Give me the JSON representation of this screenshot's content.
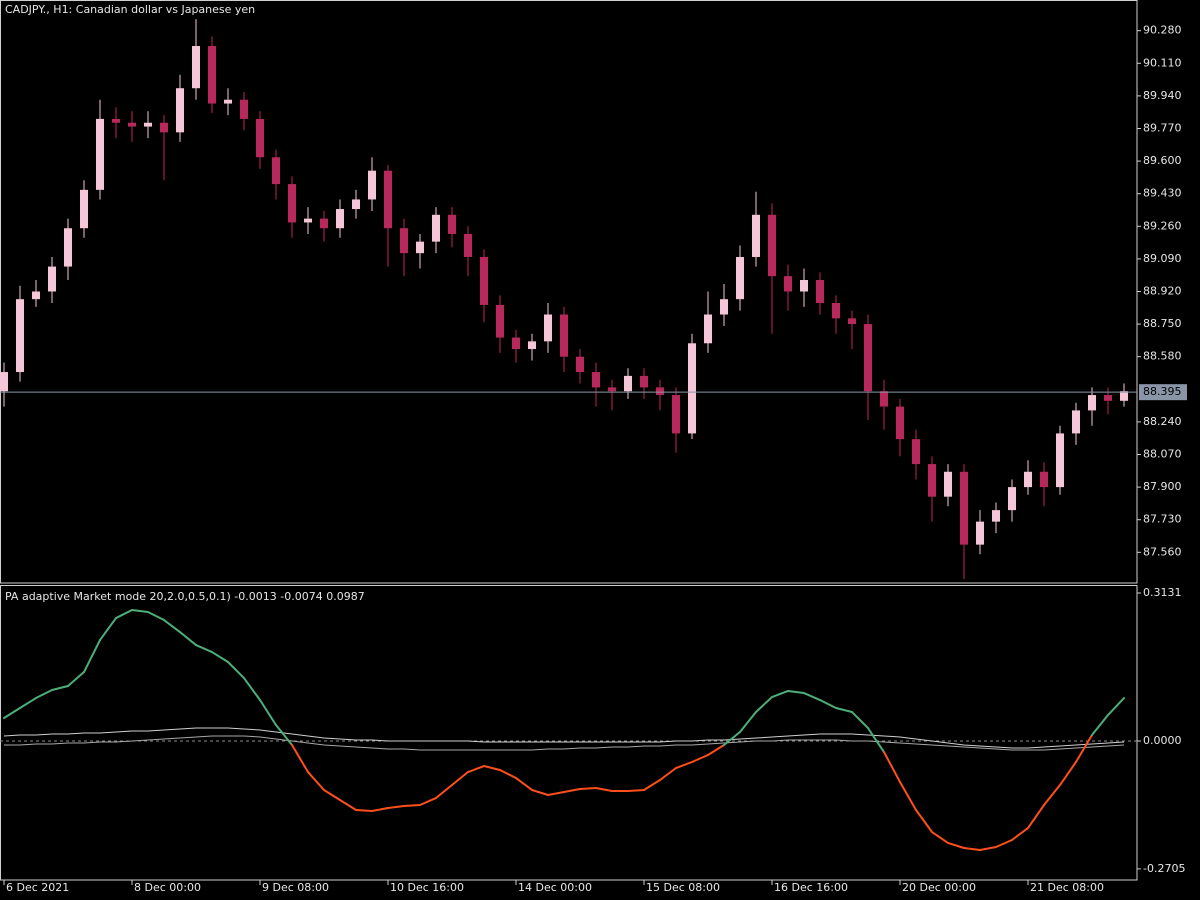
{
  "chart_data": [
    {
      "type": "candlestick",
      "title": "CADJPY., H1:  Canadian dollar vs Japanese yen",
      "x": [
        "6 Dec 2021",
        null,
        null,
        null,
        null,
        null,
        null,
        null,
        "8 Dec 00:00",
        null,
        null,
        null,
        null,
        null,
        null,
        null,
        "9 Dec 08:00",
        null,
        null,
        null,
        null,
        null,
        null,
        null,
        "10 Dec 16:00",
        null,
        null,
        null,
        null,
        null,
        null,
        null,
        "14 Dec 00:00",
        null,
        null,
        null,
        null,
        null,
        null,
        null,
        "15 Dec 08:00",
        null,
        null,
        null,
        null,
        null,
        null,
        null,
        "16 Dec 16:00",
        null,
        null,
        null,
        null,
        null,
        null,
        null,
        "20 Dec 00:00",
        null,
        null,
        null,
        null,
        null,
        null,
        null,
        "21 Dec 08:00",
        null,
        null,
        null,
        null,
        null,
        null
      ],
      "open": [
        88.4,
        88.5,
        88.88,
        88.92,
        89.05,
        89.25,
        89.45,
        89.82,
        89.8,
        89.78,
        89.8,
        89.75,
        89.98,
        90.2,
        89.9,
        89.92,
        89.82,
        89.62,
        89.48,
        89.28,
        89.3,
        89.25,
        89.35,
        89.4,
        89.55,
        89.25,
        89.12,
        89.18,
        89.32,
        89.22,
        89.1,
        88.85,
        88.68,
        88.62,
        88.66,
        88.8,
        88.58,
        88.5,
        88.42,
        88.4,
        88.48,
        88.42,
        88.38,
        88.18,
        88.65,
        88.8,
        88.88,
        89.1,
        89.32,
        89.0,
        88.92,
        88.98,
        88.86,
        88.78,
        88.75,
        88.4,
        88.32,
        88.15,
        88.02,
        87.85,
        87.98,
        87.6,
        87.72,
        87.78,
        87.9,
        87.98,
        87.9,
        88.18,
        88.3,
        88.38,
        88.35
      ],
      "high": [
        88.55,
        88.95,
        88.98,
        89.1,
        89.3,
        89.5,
        89.92,
        89.88,
        89.86,
        89.86,
        89.84,
        90.05,
        90.34,
        90.25,
        89.98,
        89.96,
        89.86,
        89.66,
        89.52,
        89.36,
        89.34,
        89.4,
        89.45,
        89.62,
        89.58,
        89.3,
        89.22,
        89.36,
        89.36,
        89.26,
        89.14,
        88.9,
        88.72,
        88.7,
        88.86,
        88.84,
        88.62,
        88.55,
        88.46,
        88.52,
        88.52,
        88.46,
        88.42,
        88.7,
        88.92,
        88.96,
        89.16,
        89.44,
        89.38,
        89.06,
        89.04,
        89.02,
        88.9,
        88.82,
        88.8,
        88.46,
        88.36,
        88.2,
        88.06,
        88.02,
        88.02,
        87.78,
        87.82,
        87.94,
        88.04,
        88.03,
        88.22,
        88.34,
        88.42,
        88.42,
        88.44
      ],
      "low": [
        88.32,
        88.45,
        88.84,
        88.86,
        88.98,
        89.2,
        89.4,
        89.72,
        89.7,
        89.72,
        89.5,
        89.7,
        89.92,
        89.85,
        89.84,
        89.76,
        89.56,
        89.4,
        89.2,
        89.22,
        89.18,
        89.2,
        89.3,
        89.34,
        89.05,
        89.0,
        89.04,
        89.12,
        89.15,
        89.0,
        88.76,
        88.6,
        88.55,
        88.56,
        88.6,
        88.5,
        88.44,
        88.32,
        88.3,
        88.36,
        88.36,
        88.3,
        88.08,
        88.15,
        88.6,
        88.74,
        88.82,
        89.05,
        88.7,
        88.82,
        88.84,
        88.8,
        88.7,
        88.62,
        88.25,
        88.2,
        88.06,
        87.94,
        87.72,
        87.8,
        87.42,
        87.55,
        87.66,
        87.72,
        87.86,
        87.8,
        87.86,
        88.12,
        88.22,
        88.28,
        88.32
      ],
      "close": [
        88.5,
        88.88,
        88.92,
        89.05,
        89.25,
        89.45,
        89.82,
        89.8,
        89.78,
        89.8,
        89.75,
        89.98,
        90.2,
        89.9,
        89.92,
        89.82,
        89.62,
        89.48,
        89.28,
        89.3,
        89.25,
        89.35,
        89.4,
        89.55,
        89.25,
        89.12,
        89.18,
        89.32,
        89.22,
        89.1,
        88.85,
        88.68,
        88.62,
        88.66,
        88.8,
        88.58,
        88.5,
        88.42,
        88.4,
        88.48,
        88.42,
        88.38,
        88.18,
        88.65,
        88.8,
        88.88,
        89.1,
        89.32,
        89.0,
        88.92,
        88.98,
        88.86,
        88.78,
        88.75,
        88.4,
        88.32,
        88.15,
        88.02,
        87.85,
        87.98,
        87.6,
        87.72,
        87.78,
        87.9,
        87.98,
        87.9,
        88.18,
        88.3,
        88.38,
        88.35,
        88.4
      ],
      "up_color": "#f4c6d8",
      "down_color": "#b8285c",
      "last_price": 88.395,
      "ylim": [
        87.4,
        90.44
      ],
      "yticks": [
        {
          "value": 90.28,
          "label": "90.280"
        },
        {
          "value": 90.11,
          "label": "90.110"
        },
        {
          "value": 89.94,
          "label": "89.940"
        },
        {
          "value": 89.77,
          "label": "89.770"
        },
        {
          "value": 89.6,
          "label": "89.600"
        },
        {
          "value": 89.43,
          "label": "89.430"
        },
        {
          "value": 89.26,
          "label": "89.260"
        },
        {
          "value": 89.09,
          "label": "89.090"
        },
        {
          "value": 88.92,
          "label": "88.920"
        },
        {
          "value": 88.75,
          "label": "88.750"
        },
        {
          "value": 88.58,
          "label": "88.580"
        },
        {
          "value": 88.24,
          "label": "88.240"
        },
        {
          "value": 88.07,
          "label": "88.070"
        },
        {
          "value": 87.9,
          "label": "87.900"
        },
        {
          "value": 87.73,
          "label": "87.730"
        },
        {
          "value": 87.56,
          "label": "87.560"
        }
      ]
    },
    {
      "type": "line",
      "title": "PA adaptive Market mode 20,2.0,0.5,0.1) -0.0013 -0.0074 0.0987",
      "series": [
        {
          "color": "#d0d0d0",
          "values": [
            0.0106,
            0.0127,
            0.0127,
            0.0148,
            0.0148,
            0.0169,
            0.0169,
            0.019,
            0.0212,
            0.0212,
            0.0233,
            0.0254,
            0.0275,
            0.0275,
            0.0275,
            0.0254,
            0.0233,
            0.019,
            0.0148,
            0.0106,
            0.0063,
            0.0042,
            0.0021,
            0.0021,
            0,
            0,
            0,
            0,
            0,
            0,
            -0.0021,
            -0.0021,
            -0.0021,
            -0.0021,
            -0.0021,
            -0.0021,
            -0.0021,
            -0.0021,
            -0.0021,
            -0.0021,
            -0.0021,
            -0.0021,
            0,
            0,
            0.0021,
            0.0021,
            0.0042,
            0.0063,
            0.0085,
            0.0106,
            0.0127,
            0.0148,
            0.0148,
            0.0148,
            0.0127,
            0.0106,
            0.0085,
            0.0042,
            0,
            -0.0042,
            -0.0085,
            -0.0106,
            -0.0127,
            -0.0148,
            -0.0148,
            -0.0127,
            -0.0106,
            -0.0085,
            -0.0063,
            -0.0042,
            -0.0021
          ]
        },
        {
          "color": "#a8a8a8",
          "values": [
            -0.0085,
            -0.0085,
            -0.0063,
            -0.0063,
            -0.0042,
            -0.0042,
            -0.0021,
            -0.0021,
            0,
            0.0021,
            0.0042,
            0.0063,
            0.0085,
            0.0106,
            0.0106,
            0.0106,
            0.0085,
            0.0042,
            0,
            -0.0042,
            -0.0085,
            -0.0106,
            -0.0127,
            -0.0148,
            -0.0169,
            -0.0169,
            -0.019,
            -0.019,
            -0.019,
            -0.019,
            -0.019,
            -0.019,
            -0.019,
            -0.019,
            -0.0169,
            -0.0169,
            -0.0148,
            -0.0148,
            -0.0127,
            -0.0127,
            -0.0106,
            -0.0106,
            -0.0085,
            -0.0085,
            -0.0063,
            -0.0042,
            -0.0021,
            0,
            0,
            0.0021,
            0.0021,
            0.0021,
            0.0021,
            0,
            0,
            -0.0021,
            -0.0042,
            -0.0063,
            -0.0085,
            -0.0106,
            -0.0127,
            -0.0148,
            -0.0169,
            -0.019,
            -0.019,
            -0.019,
            -0.0169,
            -0.0148,
            -0.0127,
            -0.0106,
            -0.0085
          ]
        },
        {
          "color_positive": "#4caf78",
          "color_negative": "#ff4f1a",
          "values": [
            0.0486,
            0.0698,
            0.0909,
            0.1079,
            0.1163,
            0.1459,
            0.2136,
            0.2601,
            0.2771,
            0.2728,
            0.2559,
            0.2305,
            0.203,
            0.1882,
            0.1671,
            0.1332,
            0.0867,
            0.0338,
            -0.0085,
            -0.0656,
            -0.1036,
            -0.1248,
            -0.1459,
            -0.1481,
            -0.1417,
            -0.1375,
            -0.1354,
            -0.1206,
            -0.0931,
            -0.0656,
            -0.0529,
            -0.0613,
            -0.0783,
            -0.1036,
            -0.1142,
            -0.1079,
            -0.1015,
            -0.0994,
            -0.1058,
            -0.1058,
            -0.1036,
            -0.0825,
            -0.0571,
            -0.0444,
            -0.0296,
            -0.0085,
            0.019,
            0.0613,
            0.093,
            0.1058,
            0.1015,
            0.0867,
            0.0698,
            0.0613,
            0.0275,
            -0.0233,
            -0.0867,
            -0.1459,
            -0.1925,
            -0.2157,
            -0.2263,
            -0.2306,
            -0.2242,
            -0.2094,
            -0.184,
            -0.1354,
            -0.0931,
            -0.0444,
            0.0127,
            0.055,
            0.0909
          ]
        }
      ],
      "zero_line": true,
      "ylim": [
        -0.294,
        0.33
      ],
      "yticks": [
        0.3131,
        {
          "value": 0,
          "label": "0.0000"
        },
        -0.2705
      ]
    }
  ]
}
